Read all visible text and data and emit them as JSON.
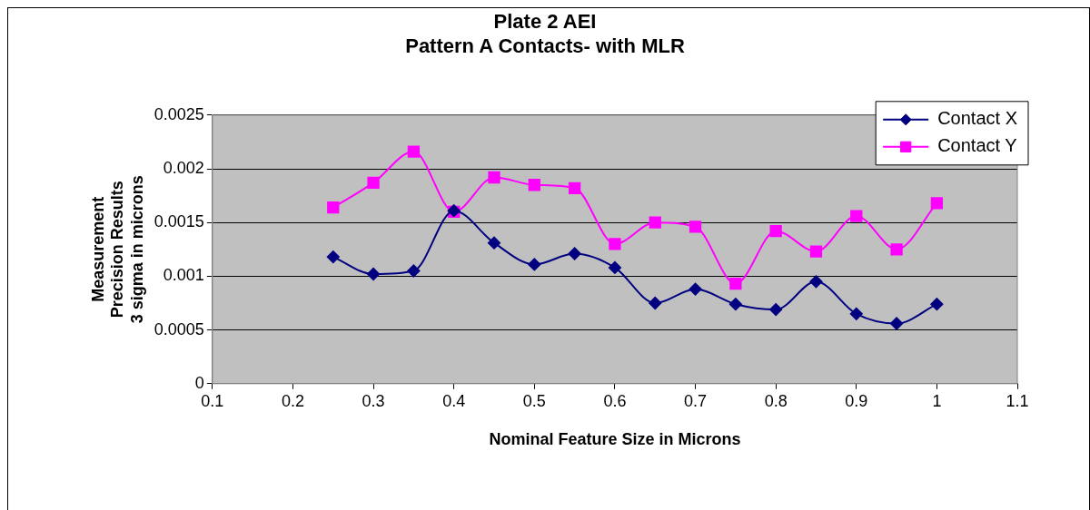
{
  "chart_data": {
    "type": "line",
    "title": "Plate 2 AEI\nPattern A Contacts- with MLR",
    "xlabel": "Nominal Feature Size in Microns",
    "ylabel": "Measurement\nPrecision Results\n3 sigma in microns",
    "x": [
      0.25,
      0.3,
      0.35,
      0.4,
      0.45,
      0.5,
      0.55,
      0.6,
      0.65,
      0.7,
      0.75,
      0.8,
      0.85,
      0.9,
      0.95,
      1.0
    ],
    "series": [
      {
        "name": "Contact X",
        "color": "#000080",
        "marker": "diamond",
        "values": [
          0.00118,
          0.00102,
          0.00105,
          0.00161,
          0.00131,
          0.00111,
          0.00121,
          0.00108,
          0.00075,
          0.00088,
          0.00074,
          0.00069,
          0.00095,
          0.00065,
          0.00056,
          0.00074
        ]
      },
      {
        "name": "Contact Y",
        "color": "#ff00ff",
        "marker": "square",
        "values": [
          0.00164,
          0.00187,
          0.00216,
          0.0016,
          0.00192,
          0.00185,
          0.00182,
          0.0013,
          0.0015,
          0.00146,
          0.00093,
          0.00142,
          0.00123,
          0.00156,
          0.00125,
          0.00168
        ]
      }
    ],
    "xlim": [
      0.1,
      1.1
    ],
    "xticks": [
      0.1,
      0.2,
      0.3,
      0.4,
      0.5,
      0.6,
      0.7,
      0.8,
      0.9,
      1,
      1.1
    ],
    "ylim": [
      0,
      0.0025
    ],
    "yticks": [
      0,
      0.0005,
      0.001,
      0.0015,
      0.002,
      0.0025
    ],
    "grid": "y",
    "legend": "top right",
    "line_style": "solid"
  }
}
